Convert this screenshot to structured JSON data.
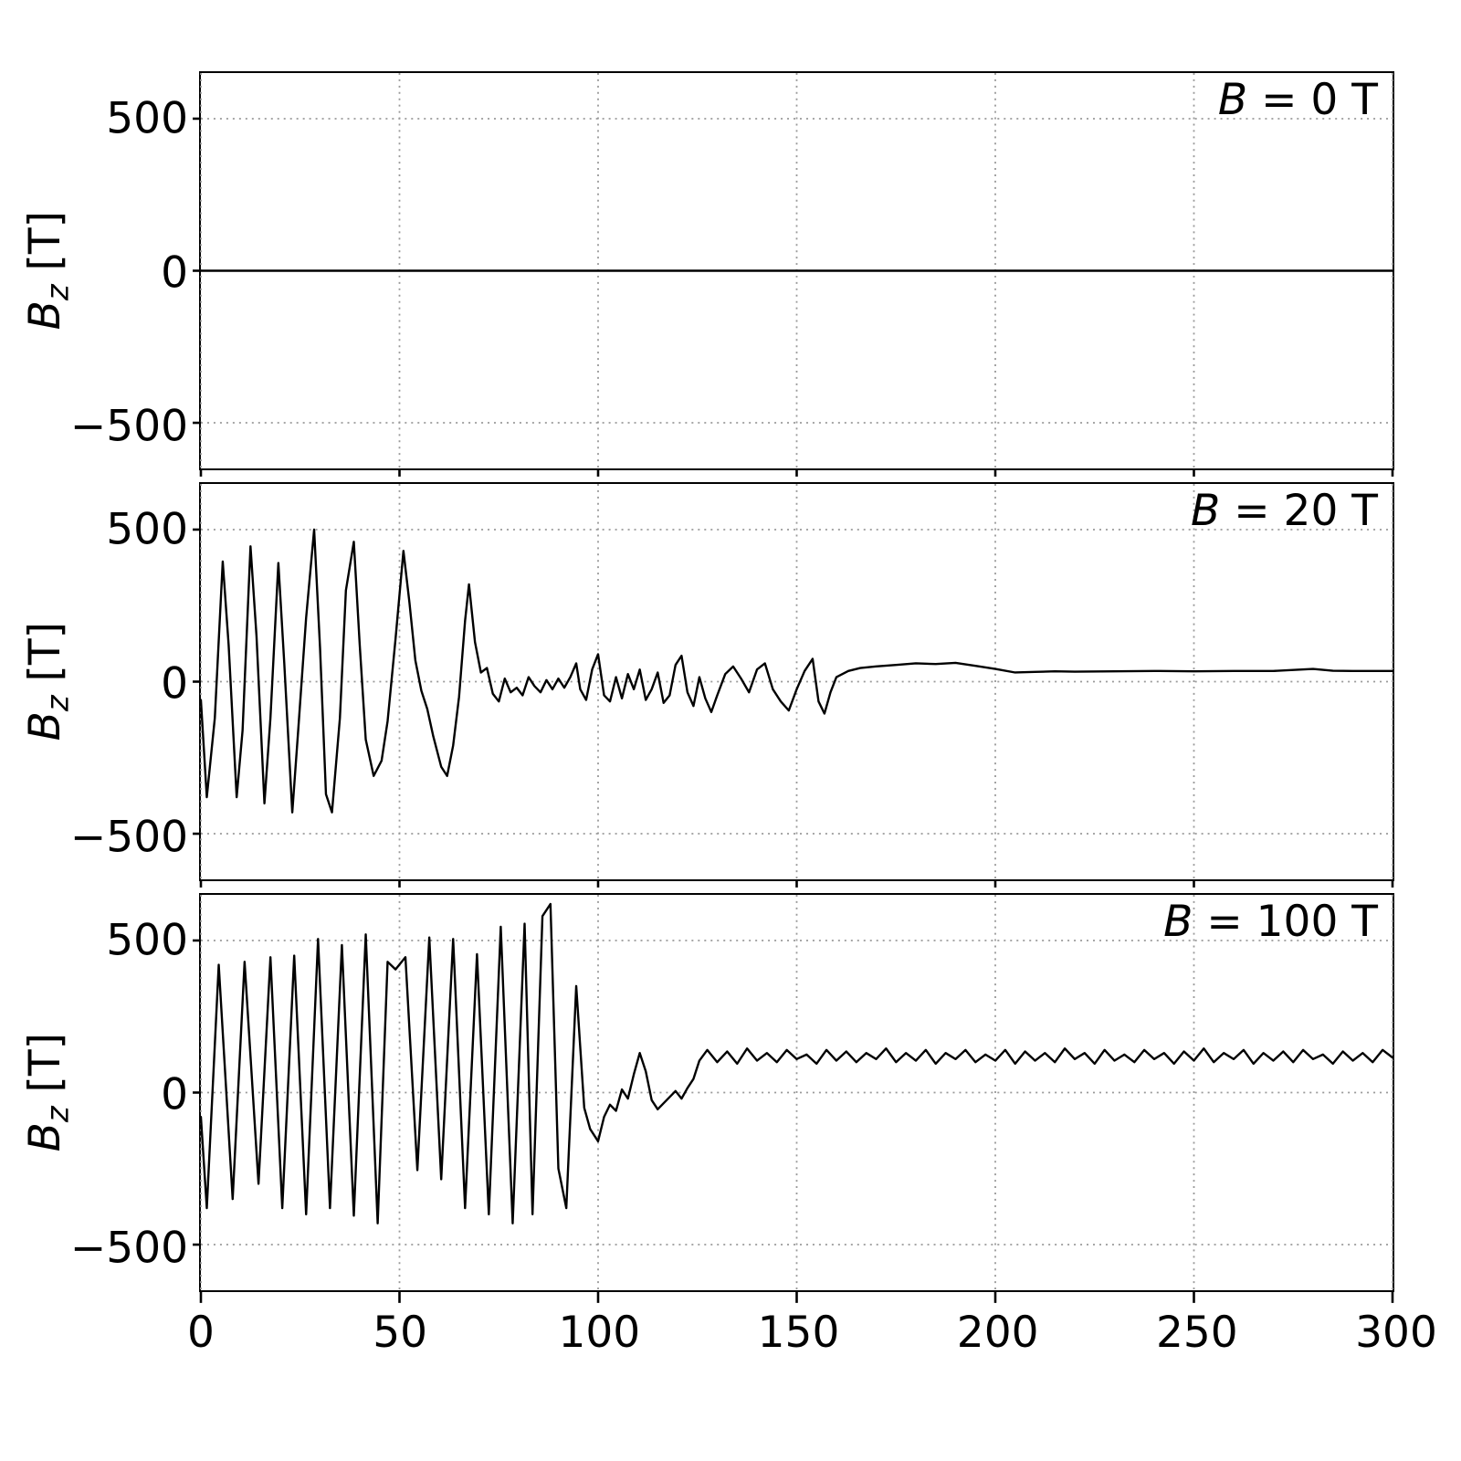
{
  "figure": {
    "background": "#ffffff",
    "line_color": "#000000",
    "grid_color": "#999999"
  },
  "ylabel": {
    "symbol": "B",
    "sub": "z",
    "rest": " [T]"
  },
  "chart_data": [
    {
      "type": "line",
      "annotation": {
        "symbol": "B",
        "rest": " = 0 T"
      },
      "x_range": [
        0,
        300
      ],
      "y_range": [
        -650,
        650
      ],
      "x_ticks": [
        0,
        50,
        100,
        150,
        200,
        250,
        300
      ],
      "y_ticks": [
        500,
        0,
        -500
      ],
      "y_tick_labels": [
        "500",
        "0",
        "−500"
      ],
      "x_tick_labels": [],
      "grid": true,
      "legend": "none",
      "series": [
        {
          "name": "Bz",
          "points": [
            [
              0,
              0
            ],
            [
              300,
              0
            ]
          ]
        }
      ]
    },
    {
      "type": "line",
      "annotation": {
        "symbol": "B",
        "rest": " = 20 T"
      },
      "x_range": [
        0,
        300
      ],
      "y_range": [
        -650,
        650
      ],
      "x_ticks": [
        0,
        50,
        100,
        150,
        200,
        250,
        300
      ],
      "y_ticks": [
        500,
        0,
        -500
      ],
      "y_tick_labels": [
        "500",
        "0",
        "−500"
      ],
      "x_tick_labels": [],
      "grid": true,
      "legend": "none",
      "series": [
        {
          "name": "Bz",
          "points": [
            [
              0,
              -60
            ],
            [
              1.5,
              -380
            ],
            [
              3.5,
              -120
            ],
            [
              5.5,
              395
            ],
            [
              7,
              120
            ],
            [
              9,
              -380
            ],
            [
              10.5,
              -160
            ],
            [
              12.5,
              445
            ],
            [
              14,
              150
            ],
            [
              16,
              -400
            ],
            [
              17.5,
              -120
            ],
            [
              19.5,
              390
            ],
            [
              21,
              60
            ],
            [
              23,
              -430
            ],
            [
              24.5,
              -160
            ],
            [
              26.5,
              210
            ],
            [
              28.5,
              500
            ],
            [
              30,
              110
            ],
            [
              31.5,
              -370
            ],
            [
              33,
              -430
            ],
            [
              35,
              -120
            ],
            [
              36.5,
              300
            ],
            [
              38.5,
              460
            ],
            [
              40,
              120
            ],
            [
              41.5,
              -190
            ],
            [
              43.5,
              -310
            ],
            [
              45.5,
              -260
            ],
            [
              47,
              -130
            ],
            [
              49,
              140
            ],
            [
              51,
              430
            ],
            [
              52.5,
              260
            ],
            [
              54,
              70
            ],
            [
              55.5,
              -30
            ],
            [
              57,
              -90
            ],
            [
              58.5,
              -180
            ],
            [
              60.5,
              -280
            ],
            [
              62,
              -310
            ],
            [
              63.5,
              -210
            ],
            [
              65,
              -50
            ],
            [
              66.5,
              200
            ],
            [
              67.5,
              320
            ],
            [
              69,
              130
            ],
            [
              70.5,
              30
            ],
            [
              72,
              45
            ],
            [
              73.5,
              -40
            ],
            [
              75,
              -65
            ],
            [
              76.5,
              10
            ],
            [
              78,
              -35
            ],
            [
              79.5,
              -20
            ],
            [
              81,
              -45
            ],
            [
              82.5,
              15
            ],
            [
              84,
              -15
            ],
            [
              85.5,
              -35
            ],
            [
              87,
              5
            ],
            [
              88.5,
              -25
            ],
            [
              90,
              10
            ],
            [
              91.5,
              -20
            ],
            [
              93,
              15
            ],
            [
              94.5,
              60
            ],
            [
              95.5,
              -25
            ],
            [
              97,
              -60
            ],
            [
              98.5,
              40
            ],
            [
              100,
              90
            ],
            [
              101.5,
              -45
            ],
            [
              103,
              -65
            ],
            [
              104.5,
              15
            ],
            [
              106,
              -55
            ],
            [
              107.5,
              25
            ],
            [
              109,
              -25
            ],
            [
              110.5,
              40
            ],
            [
              112,
              -60
            ],
            [
              113.5,
              -25
            ],
            [
              115,
              30
            ],
            [
              116.5,
              -70
            ],
            [
              118,
              -45
            ],
            [
              119.5,
              55
            ],
            [
              121,
              85
            ],
            [
              122.5,
              -35
            ],
            [
              124,
              -80
            ],
            [
              125.5,
              15
            ],
            [
              127,
              -55
            ],
            [
              128.5,
              -100
            ],
            [
              130,
              -45
            ],
            [
              132,
              25
            ],
            [
              134,
              50
            ],
            [
              136,
              10
            ],
            [
              138,
              -35
            ],
            [
              140,
              40
            ],
            [
              142,
              60
            ],
            [
              144,
              -25
            ],
            [
              146,
              -65
            ],
            [
              148,
              -95
            ],
            [
              150,
              -25
            ],
            [
              152,
              35
            ],
            [
              154,
              75
            ],
            [
              155.5,
              -65
            ],
            [
              157,
              -105
            ],
            [
              158.5,
              -35
            ],
            [
              160,
              15
            ],
            [
              163,
              35
            ],
            [
              166,
              45
            ],
            [
              170,
              50
            ],
            [
              175,
              55
            ],
            [
              180,
              60
            ],
            [
              185,
              58
            ],
            [
              190,
              62
            ],
            [
              195,
              52
            ],
            [
              200,
              42
            ],
            [
              205,
              30
            ],
            [
              210,
              32
            ],
            [
              215,
              34
            ],
            [
              220,
              33
            ],
            [
              230,
              34
            ],
            [
              240,
              35
            ],
            [
              250,
              34
            ],
            [
              260,
              35
            ],
            [
              270,
              35
            ],
            [
              280,
              42
            ],
            [
              285,
              36
            ],
            [
              290,
              35
            ],
            [
              300,
              35
            ]
          ]
        }
      ]
    },
    {
      "type": "line",
      "annotation": {
        "symbol": "B",
        "rest": " = 100 T"
      },
      "x_range": [
        0,
        300
      ],
      "y_range": [
        -650,
        650
      ],
      "x_ticks": [
        0,
        50,
        100,
        150,
        200,
        250,
        300
      ],
      "y_ticks": [
        500,
        0,
        -500
      ],
      "y_tick_labels": [
        "500",
        "0",
        "−500"
      ],
      "x_tick_labels": [
        "0",
        "50",
        "100",
        "150",
        "200",
        "250",
        "300"
      ],
      "grid": true,
      "legend": "none",
      "series": [
        {
          "name": "Bz",
          "points": [
            [
              0,
              -80
            ],
            [
              1.5,
              -380
            ],
            [
              4.5,
              420
            ],
            [
              8,
              -350
            ],
            [
              11,
              430
            ],
            [
              14.5,
              -300
            ],
            [
              17.5,
              445
            ],
            [
              20.5,
              -380
            ],
            [
              23.5,
              450
            ],
            [
              26.5,
              -400
            ],
            [
              29.5,
              505
            ],
            [
              32.5,
              -380
            ],
            [
              35.5,
              485
            ],
            [
              38.5,
              -405
            ],
            [
              41.5,
              520
            ],
            [
              44.5,
              -430
            ],
            [
              47,
              430
            ],
            [
              49,
              405
            ],
            [
              51.5,
              445
            ],
            [
              54.5,
              -255
            ],
            [
              57.5,
              510
            ],
            [
              60.5,
              -285
            ],
            [
              63.5,
              505
            ],
            [
              66.5,
              -380
            ],
            [
              69.5,
              455
            ],
            [
              72.5,
              -400
            ],
            [
              75.5,
              545
            ],
            [
              78.5,
              -430
            ],
            [
              81.5,
              555
            ],
            [
              83.5,
              -400
            ],
            [
              86,
              580
            ],
            [
              88,
              620
            ],
            [
              90,
              -250
            ],
            [
              92,
              -380
            ],
            [
              94.5,
              350
            ],
            [
              96.5,
              -50
            ],
            [
              98,
              -120
            ],
            [
              100,
              -160
            ],
            [
              101.5,
              -80
            ],
            [
              103,
              -40
            ],
            [
              104.5,
              -60
            ],
            [
              106,
              10
            ],
            [
              107.5,
              -20
            ],
            [
              109,
              60
            ],
            [
              110.5,
              130
            ],
            [
              112,
              70
            ],
            [
              113.5,
              -25
            ],
            [
              115,
              -55
            ],
            [
              116.5,
              -35
            ],
            [
              118,
              -15
            ],
            [
              119.5,
              5
            ],
            [
              121,
              -20
            ],
            [
              122.5,
              15
            ],
            [
              124,
              45
            ],
            [
              125.5,
              105
            ],
            [
              127.5,
              140
            ],
            [
              130,
              100
            ],
            [
              132.5,
              135
            ],
            [
              135,
              95
            ],
            [
              137.5,
              145
            ],
            [
              140,
              105
            ],
            [
              142.5,
              130
            ],
            [
              145,
              100
            ],
            [
              147.5,
              140
            ],
            [
              150,
              110
            ],
            [
              152.5,
              125
            ],
            [
              155,
              95
            ],
            [
              157.5,
              140
            ],
            [
              160,
              105
            ],
            [
              162.5,
              135
            ],
            [
              165,
              100
            ],
            [
              167.5,
              130
            ],
            [
              170,
              110
            ],
            [
              172.5,
              145
            ],
            [
              175,
              100
            ],
            [
              177.5,
              130
            ],
            [
              180,
              105
            ],
            [
              182.5,
              140
            ],
            [
              185,
              95
            ],
            [
              187.5,
              130
            ],
            [
              190,
              110
            ],
            [
              192.5,
              140
            ],
            [
              195,
              100
            ],
            [
              197.5,
              125
            ],
            [
              200,
              105
            ],
            [
              202.5,
              140
            ],
            [
              205,
              95
            ],
            [
              207.5,
              135
            ],
            [
              210,
              105
            ],
            [
              212.5,
              130
            ],
            [
              215,
              100
            ],
            [
              217.5,
              145
            ],
            [
              220,
              110
            ],
            [
              222.5,
              130
            ],
            [
              225,
              95
            ],
            [
              227.5,
              140
            ],
            [
              230,
              105
            ],
            [
              232.5,
              125
            ],
            [
              235,
              100
            ],
            [
              237.5,
              140
            ],
            [
              240,
              110
            ],
            [
              242.5,
              130
            ],
            [
              245,
              95
            ],
            [
              247.5,
              135
            ],
            [
              250,
              105
            ],
            [
              252.5,
              145
            ],
            [
              255,
              100
            ],
            [
              257.5,
              130
            ],
            [
              260,
              110
            ],
            [
              262.5,
              140
            ],
            [
              265,
              95
            ],
            [
              267.5,
              130
            ],
            [
              270,
              105
            ],
            [
              272.5,
              135
            ],
            [
              275,
              100
            ],
            [
              277.5,
              140
            ],
            [
              280,
              110
            ],
            [
              282.5,
              125
            ],
            [
              285,
              95
            ],
            [
              287.5,
              135
            ],
            [
              290,
              105
            ],
            [
              292.5,
              130
            ],
            [
              295,
              100
            ],
            [
              297.5,
              140
            ],
            [
              300,
              115
            ]
          ]
        }
      ]
    }
  ]
}
